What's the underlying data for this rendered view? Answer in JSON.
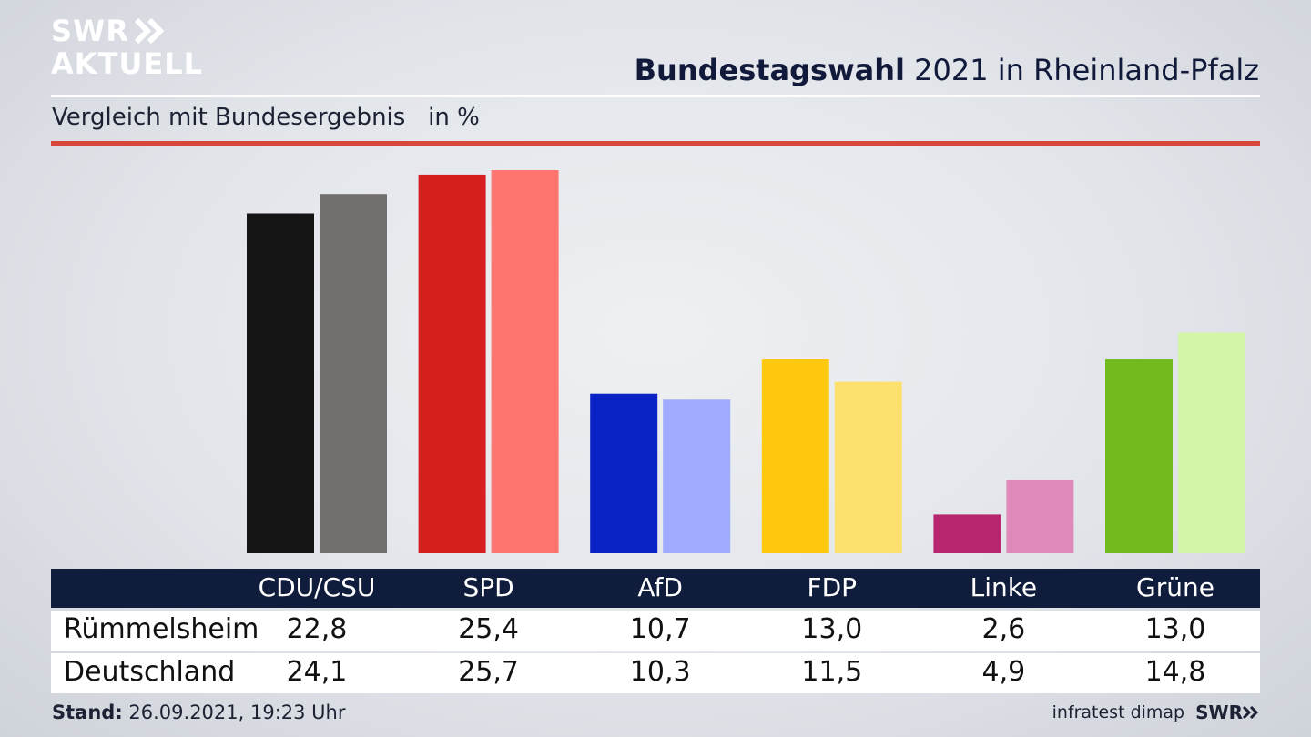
{
  "logo": {
    "line1": "SWR",
    "line2": "AKTUELL"
  },
  "header": {
    "title_bold": "Bundestagswahl",
    "title_rest": " 2021 in Rheinland-Pfalz",
    "subtitle": "Vergleich mit Bundesergebnis   in %"
  },
  "chart_data": {
    "type": "bar",
    "categories": [
      "CDU/CSU",
      "SPD",
      "AfD",
      "FDP",
      "Linke",
      "Grüne"
    ],
    "series": [
      {
        "name": "Rümmelsheim",
        "values": [
          22.8,
          25.4,
          10.7,
          13.0,
          2.6,
          13.0
        ],
        "labels": [
          "22,8",
          "25,4",
          "10,7",
          "13,0",
          "2,6",
          "13,0"
        ]
      },
      {
        "name": "Deutschland",
        "values": [
          24.1,
          25.7,
          10.3,
          11.5,
          4.9,
          14.8
        ],
        "labels": [
          "24,1",
          "25,7",
          "10,3",
          "11,5",
          "4,9",
          "14,8"
        ]
      }
    ],
    "colors": {
      "Rümmelsheim": [
        "#141414",
        "#d61f1f",
        "#0a23c4",
        "#ffc90f",
        "#b8256f",
        "#72bb1f"
      ],
      "Deutschland": [
        "#706f6d",
        "#fe7570",
        "#9eabff",
        "#fde06e",
        "#df8ab8",
        "#d2f5a8"
      ]
    },
    "ylim": [
      0,
      25.7
    ]
  },
  "footer": {
    "stand_label": "Stand:",
    "stand_value": " 26.09.2021, 19:23 Uhr",
    "source": "infratest dimap",
    "brand": "SWR"
  }
}
